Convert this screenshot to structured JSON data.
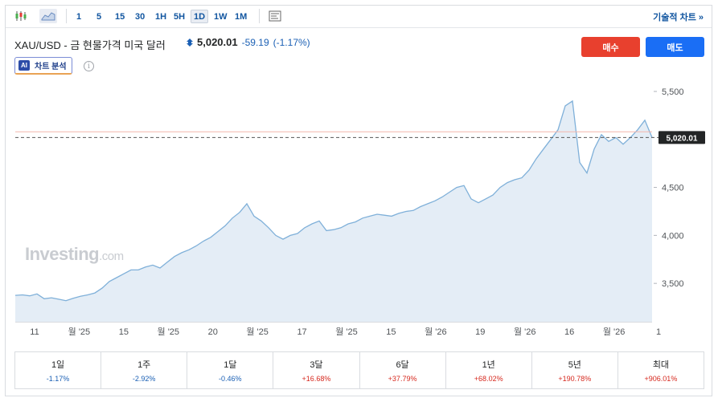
{
  "toolbar": {
    "timeframes": [
      "1",
      "5",
      "15",
      "30",
      "1H",
      "5H",
      "1D",
      "1W",
      "1M"
    ],
    "active": "1D",
    "tech_chart_label": "기술적 차트 »"
  },
  "header": {
    "title": "XAU/USD - 금 현물가격 미국 달러",
    "price": "5,020.01",
    "change": "-59.19",
    "change_pct": "(-1.17%)",
    "buy_label": "매수",
    "sell_label": "매도",
    "ai_badge": "AI",
    "ai_label": "차트 분석",
    "info": "i"
  },
  "watermark": {
    "brand": "Investing",
    "suffix": ".com"
  },
  "colors": {
    "line": "#7fb0d9",
    "fill": "#e4edf6",
    "buy": "#e8402e",
    "sell": "#1a6ef5",
    "price_label_bg": "#232526",
    "ref_line": "#f4b6ac"
  },
  "chart_data": {
    "type": "area",
    "title": "",
    "ylim": [
      3100,
      5600
    ],
    "yticks": [
      3500,
      4000,
      4500,
      5000,
      5500
    ],
    "ytick_labels": [
      "3,500",
      "4,000",
      "4,500",
      "",
      "5,500"
    ],
    "current_price": 5020.01,
    "current_price_label": "5,020.01",
    "reference_price": 5079.2,
    "xtick_labels": [
      "11",
      "월 '25",
      "15",
      "월 '25",
      "20",
      "월 '25",
      "17",
      "월 '25",
      "15",
      "월 '26",
      "19",
      "월 '26",
      "16",
      "월 '26",
      "1"
    ],
    "x": [
      0,
      3,
      6,
      9,
      12,
      15,
      18,
      21,
      24,
      27,
      30,
      33,
      36,
      39,
      42,
      45,
      48,
      51,
      54,
      57,
      60,
      63,
      66,
      69,
      72,
      75,
      78,
      81,
      84,
      87,
      90,
      93,
      96,
      99,
      102,
      105,
      108,
      111,
      114,
      117,
      120,
      123,
      126,
      129,
      132,
      135,
      138,
      141,
      144,
      147,
      150,
      153,
      156,
      159,
      162,
      165,
      168,
      171,
      174,
      177,
      180,
      183,
      186,
      189,
      192,
      195,
      198,
      201,
      204,
      207,
      210,
      213,
      216,
      219,
      222,
      225,
      228,
      231,
      234,
      237,
      240,
      243,
      246,
      249,
      252,
      255,
      258,
      261,
      264
    ],
    "values": [
      3375,
      3380,
      3370,
      3390,
      3340,
      3350,
      3335,
      3320,
      3345,
      3365,
      3380,
      3400,
      3450,
      3520,
      3560,
      3600,
      3640,
      3640,
      3670,
      3690,
      3660,
      3720,
      3780,
      3820,
      3850,
      3890,
      3940,
      3980,
      4040,
      4100,
      4180,
      4240,
      4330,
      4200,
      4150,
      4080,
      4000,
      3960,
      4000,
      4020,
      4080,
      4120,
      4150,
      4050,
      4060,
      4080,
      4120,
      4140,
      4180,
      4200,
      4220,
      4210,
      4200,
      4230,
      4250,
      4260,
      4300,
      4330,
      4360,
      4400,
      4450,
      4500,
      4520,
      4380,
      4340,
      4380,
      4420,
      4500,
      4550,
      4580,
      4600,
      4680,
      4800,
      4900,
      5000,
      5100,
      5350,
      5400,
      4760,
      4650,
      4900,
      5050,
      4980,
      5020,
      4950,
      5020,
      5100,
      5200,
      5020
    ]
  },
  "performance": [
    {
      "label": "1일",
      "value": "-1.17%",
      "dir": "neg"
    },
    {
      "label": "1주",
      "value": "-2.92%",
      "dir": "neg"
    },
    {
      "label": "1달",
      "value": "-0.46%",
      "dir": "neg"
    },
    {
      "label": "3달",
      "value": "+16.68%",
      "dir": "pos"
    },
    {
      "label": "6달",
      "value": "+37.79%",
      "dir": "pos"
    },
    {
      "label": "1년",
      "value": "+68.02%",
      "dir": "pos"
    },
    {
      "label": "5년",
      "value": "+190.78%",
      "dir": "pos"
    },
    {
      "label": "최대",
      "value": "+906.01%",
      "dir": "pos"
    }
  ]
}
